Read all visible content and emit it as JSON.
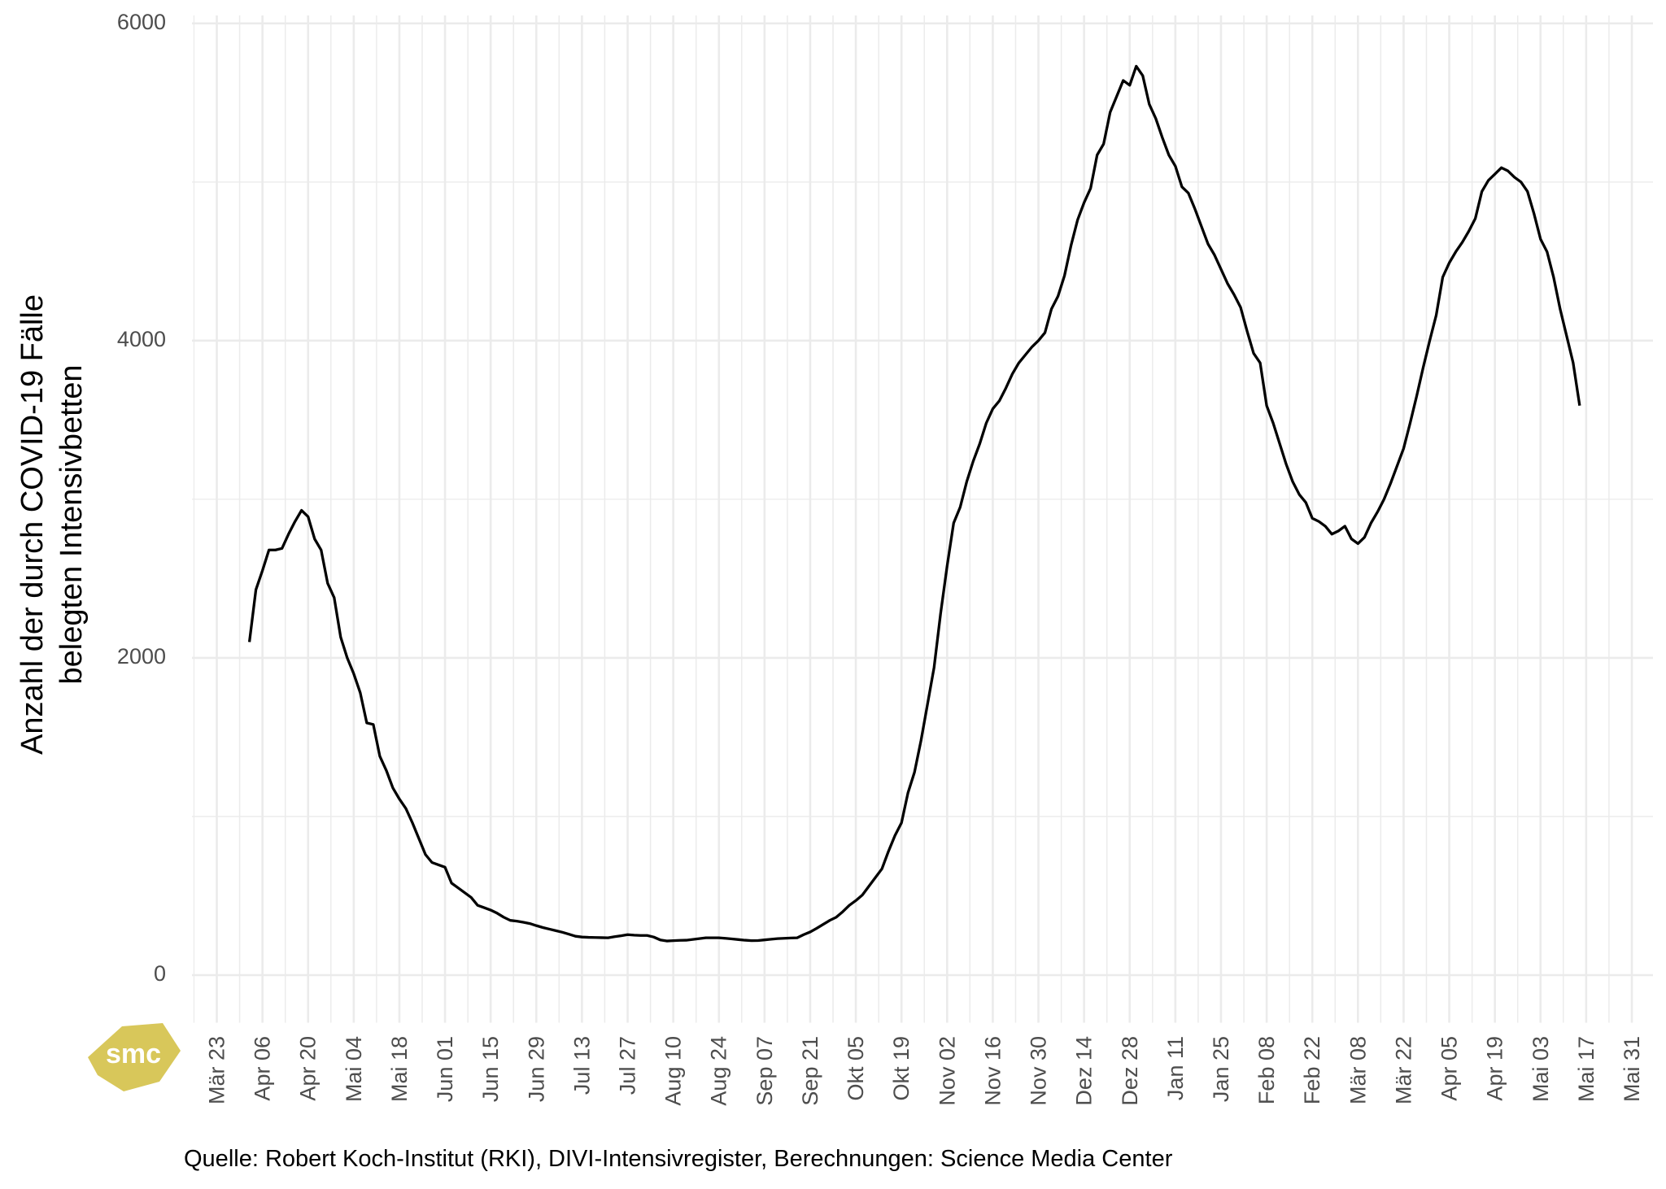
{
  "chart_data": {
    "type": "line",
    "ylabel": [
      "Anzahl der durch COVID-19 Fälle",
      "belegten Intensivbetten"
    ],
    "caption": "Quelle: Robert Koch-Institut (RKI), DIVI-Intensivregister, Berechnungen: Science Media Center",
    "logo": "smc",
    "categories": [
      "Mär 23",
      null,
      null,
      null,
      null,
      null,
      null,
      "Apr 06",
      null,
      null,
      null,
      null,
      null,
      null,
      "Apr 20",
      null,
      null,
      null,
      null,
      null,
      null,
      "Mai 04",
      null,
      null,
      null,
      null,
      null,
      null,
      "Mai 18",
      null,
      null,
      null,
      null,
      null,
      null,
      "Jun 01",
      null,
      null,
      null,
      null,
      null,
      null,
      "Jun 15",
      null,
      null,
      null,
      null,
      null,
      null,
      "Jun 29",
      null,
      null,
      null,
      null,
      null,
      null,
      "Jul 13",
      null,
      null,
      null,
      null,
      null,
      null,
      "Jul 27",
      null,
      null,
      null,
      null,
      null,
      null,
      "Aug 10",
      null,
      null,
      null,
      null,
      null,
      null,
      "Aug 24",
      null,
      null,
      null,
      null,
      null,
      null,
      "Sep 07",
      null,
      null,
      null,
      null,
      null,
      null,
      "Sep 21",
      null,
      null,
      null,
      null,
      null,
      null,
      "Okt 05",
      null,
      null,
      null,
      null,
      null,
      null,
      "Okt 19",
      null,
      null,
      null,
      null,
      null,
      null,
      "Nov 02",
      null,
      null,
      null,
      null,
      null,
      null,
      "Nov 16",
      null,
      null,
      null,
      null,
      null,
      null,
      "Nov 30",
      null,
      null,
      null,
      null,
      null,
      null,
      "Dez 14",
      null,
      null,
      null,
      null,
      null,
      null,
      "Dez 28",
      null,
      null,
      null,
      null,
      null,
      null,
      "Jan 11",
      null,
      null,
      null,
      null,
      null,
      null,
      "Jan 25",
      null,
      null,
      null,
      null,
      null,
      null,
      "Feb 08",
      null,
      null,
      null,
      null,
      null,
      null,
      "Feb 22",
      null,
      null,
      null,
      null,
      null,
      null,
      "Mär 08",
      null,
      null,
      null,
      null,
      null,
      null,
      "Mär 22",
      null,
      null,
      null,
      null,
      null,
      null,
      "Apr 05",
      null,
      null,
      null,
      null,
      null,
      null,
      "Apr 19",
      null,
      null,
      null,
      null,
      null,
      null,
      "Mai 03",
      null,
      null,
      null,
      null,
      null,
      null,
      "Mai 17",
      null,
      null,
      null,
      null,
      null,
      null,
      "Mai 31"
    ],
    "values": [
      null,
      null,
      null,
      null,
      null,
      2100,
      2430,
      2550,
      2680,
      2680,
      2690,
      2780,
      2860,
      2930,
      2890,
      2750,
      2680,
      2470,
      2380,
      2130,
      2000,
      1900,
      1780,
      1590,
      1580,
      1380,
      1290,
      1180,
      1110,
      1050,
      960,
      860,
      760,
      710,
      695,
      680,
      580,
      550,
      520,
      490,
      440,
      425,
      410,
      390,
      365,
      345,
      340,
      333,
      325,
      312,
      300,
      290,
      280,
      270,
      258,
      245,
      240,
      238,
      237,
      236,
      235,
      242,
      248,
      255,
      252,
      250,
      250,
      240,
      222,
      215,
      217,
      219,
      220,
      225,
      230,
      235,
      235,
      235,
      232,
      228,
      224,
      220,
      217,
      218,
      222,
      226,
      230,
      232,
      234,
      235,
      255,
      272,
      295,
      320,
      345,
      365,
      400,
      440,
      470,
      505,
      560,
      615,
      670,
      780,
      880,
      960,
      1150,
      1280,
      1480,
      1710,
      1940,
      2280,
      2580,
      2850,
      2950,
      3110,
      3240,
      3350,
      3480,
      3570,
      3620,
      3700,
      3790,
      3860,
      3910,
      3960,
      4000,
      4050,
      4200,
      4280,
      4410,
      4600,
      4760,
      4870,
      4960,
      5170,
      5240,
      5440,
      5540,
      5640,
      5610,
      5730,
      5670,
      5490,
      5400,
      5280,
      5170,
      5100,
      4970,
      4930,
      4830,
      4720,
      4610,
      4540,
      4450,
      4360,
      4290,
      4210,
      4060,
      3920,
      3860,
      3590,
      3480,
      3350,
      3220,
      3110,
      3030,
      2980,
      2880,
      2860,
      2830,
      2780,
      2800,
      2830,
      2750,
      2720,
      2760,
      2850,
      2920,
      3000,
      3100,
      3210,
      3320,
      3480,
      3650,
      3830,
      4000,
      4160,
      4400,
      4490,
      4560,
      4620,
      4690,
      4770,
      4940,
      5010,
      5050,
      5090,
      5070,
      5030,
      5000,
      4940,
      4800,
      4640,
      4560,
      4400,
      4200,
      4030,
      3860,
      3590,
      null,
      null,
      null,
      null,
      null,
      null,
      null,
      null
    ],
    "color": "#000000",
    "ylim": [
      -300,
      6050
    ],
    "yticks": [
      0,
      2000,
      4000,
      6000
    ],
    "grid": true
  }
}
